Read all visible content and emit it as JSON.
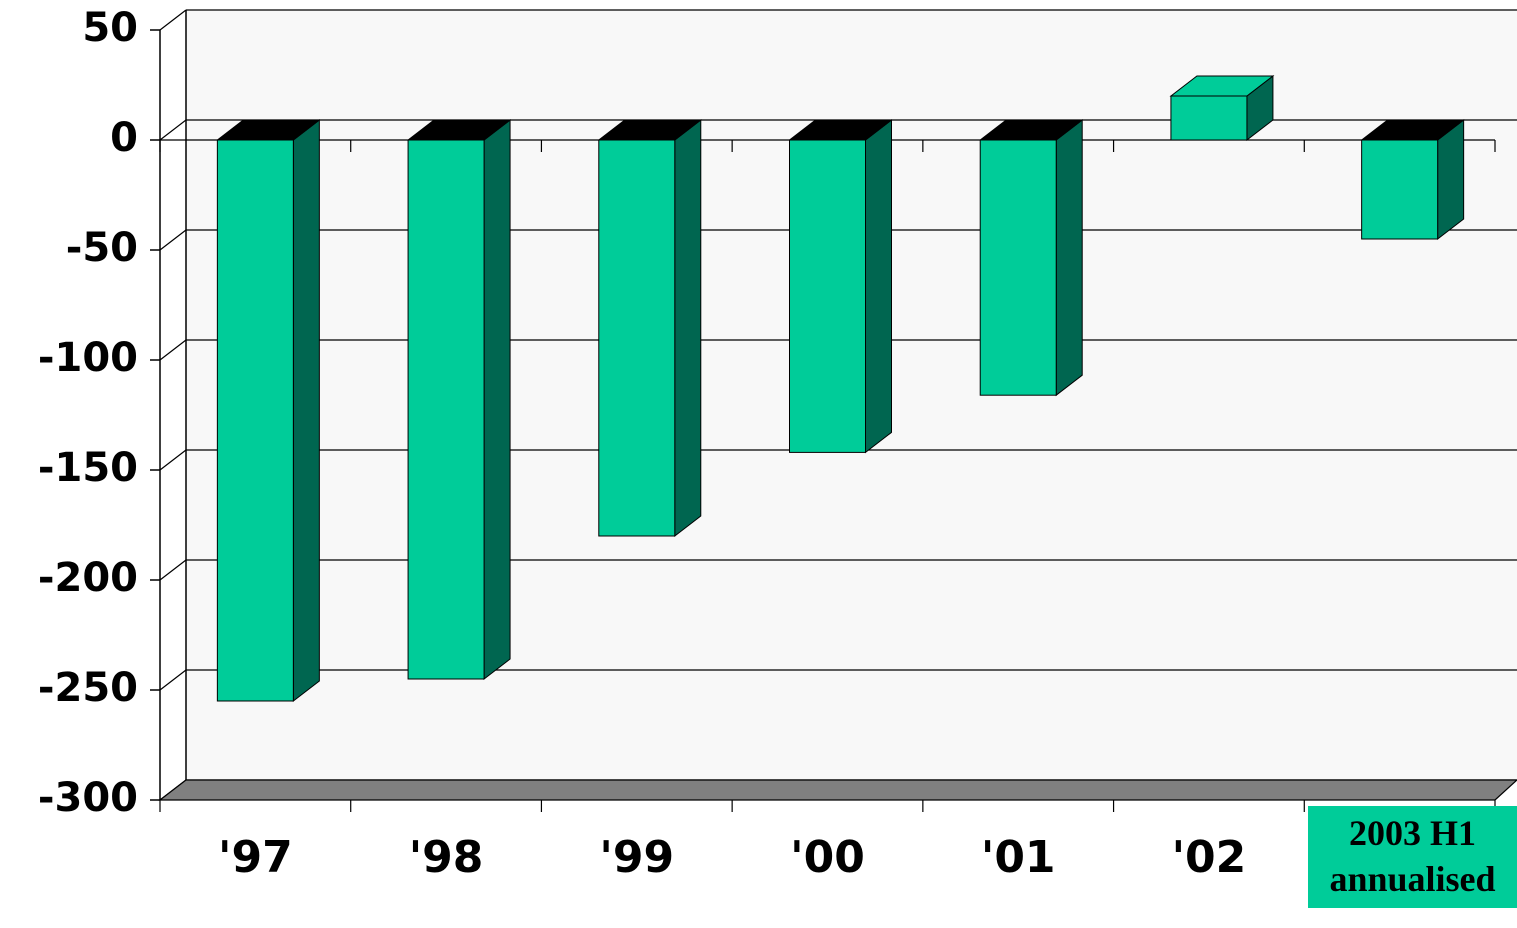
{
  "chart_data": {
    "type": "bar3d",
    "categories": [
      "'97",
      "'98",
      "'99",
      "'00",
      "'01",
      "'02",
      "2003 H1 annualised"
    ],
    "values": [
      -255,
      -245,
      -180,
      -142,
      -116,
      20,
      -45
    ],
    "color": "#00cc99",
    "side_color": "#006650",
    "top_color_negative": "#000000",
    "ylim": [
      -300,
      50
    ],
    "yticks": [
      -300,
      -250,
      -200,
      -150,
      -100,
      -50,
      0,
      50
    ],
    "grid": true
  }
}
